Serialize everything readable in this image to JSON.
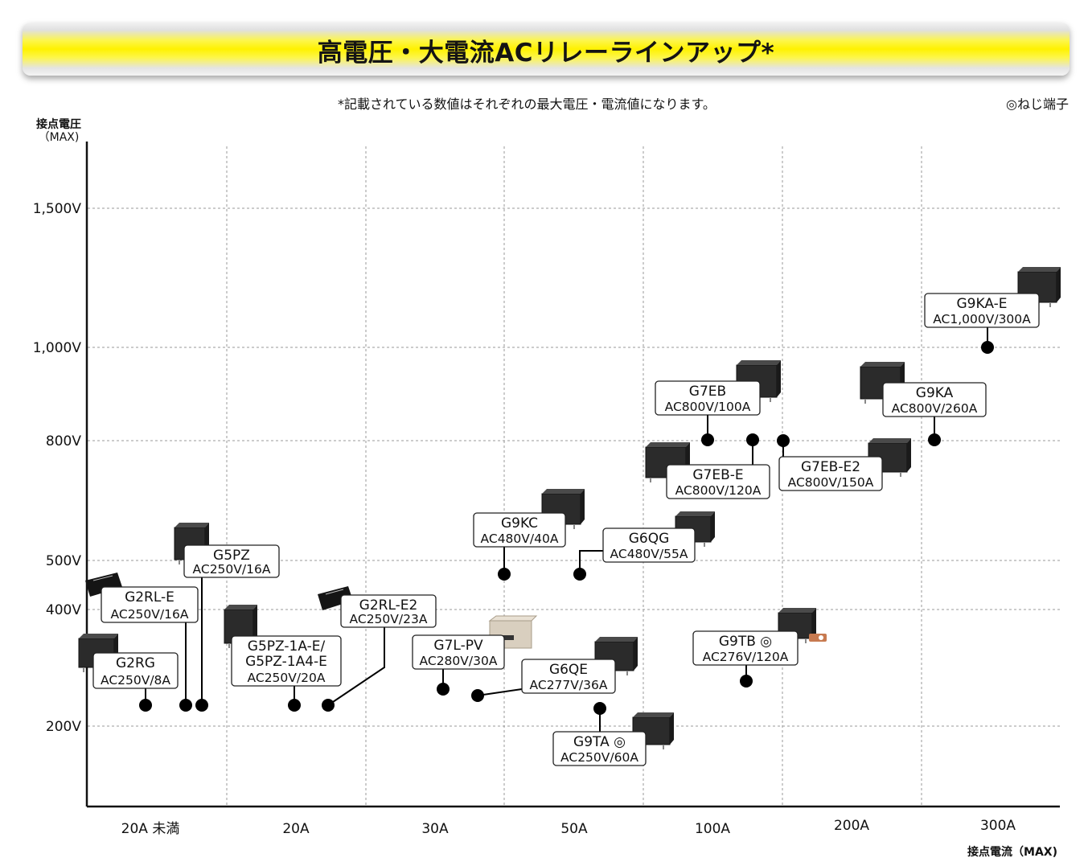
{
  "header": {
    "title": "高電圧・大電流ACリレーラインアップ*"
  },
  "notes": {
    "footnote": "*記載されている数値はそれぞれの最大電圧・電流値になります。",
    "screw_terminal_legend": "◎ねじ端子"
  },
  "colors": {
    "banner_yellow": "#fff200",
    "axis": "#111111",
    "grid": "#9a9a9a",
    "dot": "#000000",
    "relay_body": "#2b2b2b",
    "g7lpv_body": "#d9cfbf",
    "g9tb_terminal": "#c77a50"
  },
  "chart_data": {
    "type": "scatter",
    "xlabel": "接点電流（MAX)",
    "ylabel": "接点電圧\n（MAX)",
    "x_categories": [
      "20A 未満",
      "20A",
      "30A",
      "50A",
      "100A",
      "200A",
      "300A"
    ],
    "y_ticks": [
      "1,500V",
      "1,000V",
      "800V",
      "500V",
      "400V",
      "200V"
    ],
    "grid": "dashed",
    "products": [
      {
        "name": "G2RG",
        "spec": "AC250V/8A",
        "x_category": "20A 未満",
        "voltage_v": 250,
        "current_a": 8,
        "icon": "relay-box-icon"
      },
      {
        "name": "G2RL-E",
        "spec": "AC250V/16A",
        "x_category": "20A 未満",
        "voltage_v": 250,
        "current_a": 16,
        "icon": "relay-flat-icon"
      },
      {
        "name": "G5PZ",
        "spec": "AC250V/16A",
        "x_category": "20A 未満",
        "voltage_v": 250,
        "current_a": 16,
        "icon": "relay-box-icon"
      },
      {
        "name": "G5PZ-1A-E/\nG5PZ-1A4-E",
        "spec": "AC250V/20A",
        "x_category": "20A",
        "voltage_v": 250,
        "current_a": 20,
        "icon": "relay-box-icon"
      },
      {
        "name": "G2RL-E2",
        "spec": "AC250V/23A",
        "x_category": "20A",
        "voltage_v": 250,
        "current_a": 23,
        "icon": "relay-flat-icon"
      },
      {
        "name": "G7L-PV",
        "spec": "AC280V/30A",
        "x_category": "30A",
        "voltage_v": 280,
        "current_a": 30,
        "icon": "relay-beige-icon"
      },
      {
        "name": "G6QE",
        "spec": "AC277V/36A",
        "x_category": "30A",
        "voltage_v": 277,
        "current_a": 36,
        "icon": "relay-box-icon"
      },
      {
        "name": "G9KC",
        "spec": "AC480V/40A",
        "x_category": "50A",
        "voltage_v": 480,
        "current_a": 40,
        "icon": "relay-box-icon"
      },
      {
        "name": "G6QG",
        "spec": "AC480V/55A",
        "x_category": "50A",
        "voltage_v": 480,
        "current_a": 55,
        "icon": "relay-box-icon"
      },
      {
        "name": "G9TA ◎",
        "spec": "AC250V/60A",
        "x_category": "50A",
        "voltage_v": 250,
        "current_a": 60,
        "icon": "relay-box-icon"
      },
      {
        "name": "G7EB",
        "spec": "AC800V/100A",
        "x_category": "100A",
        "voltage_v": 800,
        "current_a": 100,
        "icon": "relay-box-icon"
      },
      {
        "name": "G7EB-E",
        "spec": "AC800V/120A",
        "x_category": "100A",
        "voltage_v": 800,
        "current_a": 120,
        "icon": "relay-box-icon"
      },
      {
        "name": "G9TB ◎",
        "spec": "AC276V/120A",
        "x_category": "100A",
        "voltage_v": 276,
        "current_a": 120,
        "icon": "relay-box-icon"
      },
      {
        "name": "G7EB-E2",
        "spec": "AC800V/150A",
        "x_category": "100A",
        "voltage_v": 800,
        "current_a": 150,
        "icon": "relay-box-icon"
      },
      {
        "name": "G9KA",
        "spec": "AC800V/260A",
        "x_category": "200A",
        "voltage_v": 800,
        "current_a": 260,
        "icon": "relay-box-icon"
      },
      {
        "name": "G9KA-E",
        "spec": "AC1,000V/300A",
        "x_category": "300A",
        "voltage_v": 1000,
        "current_a": 300,
        "icon": "relay-box-icon"
      }
    ]
  }
}
